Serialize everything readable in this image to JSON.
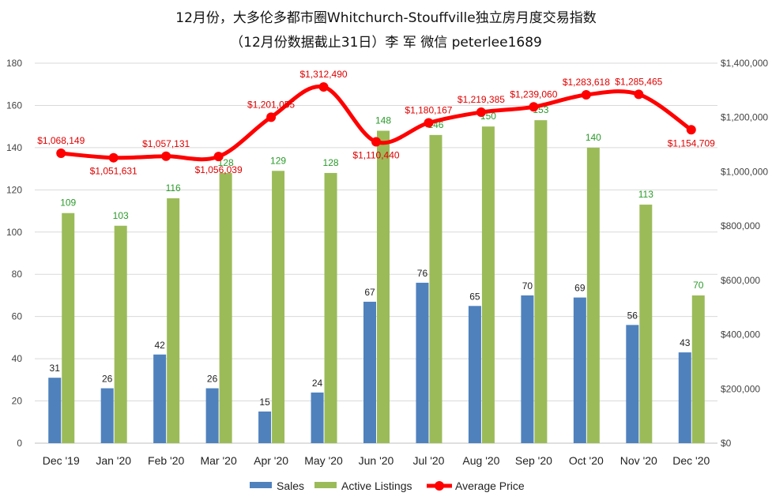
{
  "title": {
    "line1": "12月份，大多伦多都市圈Whitchurch-Stouffville独立房月度交易指数",
    "line2": "（12月份数据截止31日）李 军  微信  peterlee1689"
  },
  "colors": {
    "sales": "#4f81bd",
    "active": "#9bbb59",
    "price": "#ff0000",
    "grid": "#d9d9d9",
    "active_label": "#2a9a2a",
    "price_label": "#e00000"
  },
  "chart_data": {
    "type": "bar",
    "categories": [
      "Dec '19",
      "Jan '20",
      "Feb '20",
      "Mar '20",
      "Apr '20",
      "May '20",
      "Jun '20",
      "Jul '20",
      "Aug '20",
      "Sep '20",
      "Oct '20",
      "Nov '20",
      "Dec '20"
    ],
    "series": [
      {
        "name": "Sales",
        "type": "bar",
        "axis": "left",
        "values": [
          31,
          26,
          42,
          26,
          15,
          24,
          67,
          76,
          65,
          70,
          69,
          56,
          43
        ]
      },
      {
        "name": "Active Listings",
        "type": "bar",
        "axis": "left",
        "values": [
          109,
          103,
          116,
          128,
          129,
          128,
          148,
          146,
          150,
          153,
          140,
          113,
          70
        ]
      },
      {
        "name": "Average Price",
        "type": "line",
        "axis": "right",
        "values": [
          1068149,
          1051631,
          1057131,
          1056039,
          1201055,
          1312490,
          1110440,
          1180167,
          1219385,
          1239060,
          1283618,
          1285465,
          1154709
        ]
      }
    ],
    "price_labels": [
      "$1,068,149",
      "$1,051,631",
      "$1,057,131",
      "$1,056,039",
      "$1,201,055",
      "$1,312,490",
      "$1,110,440",
      "$1,180,167",
      "$1,219,385",
      "$1,239,060",
      "$1,283,618",
      "$1,285,465",
      "$1,154,709"
    ],
    "ylim_left": [
      0,
      180
    ],
    "yticks_left": [
      "0",
      "20",
      "40",
      "60",
      "80",
      "100",
      "120",
      "140",
      "160",
      "180"
    ],
    "ylim_right": [
      0,
      1400000
    ],
    "yticks_right": [
      "$0",
      "$200,000",
      "$400,000",
      "$600,000",
      "$800,000",
      "$1,000,000",
      "$1,200,000",
      "$1,400,000"
    ],
    "grid": true,
    "legend_position": "bottom"
  }
}
